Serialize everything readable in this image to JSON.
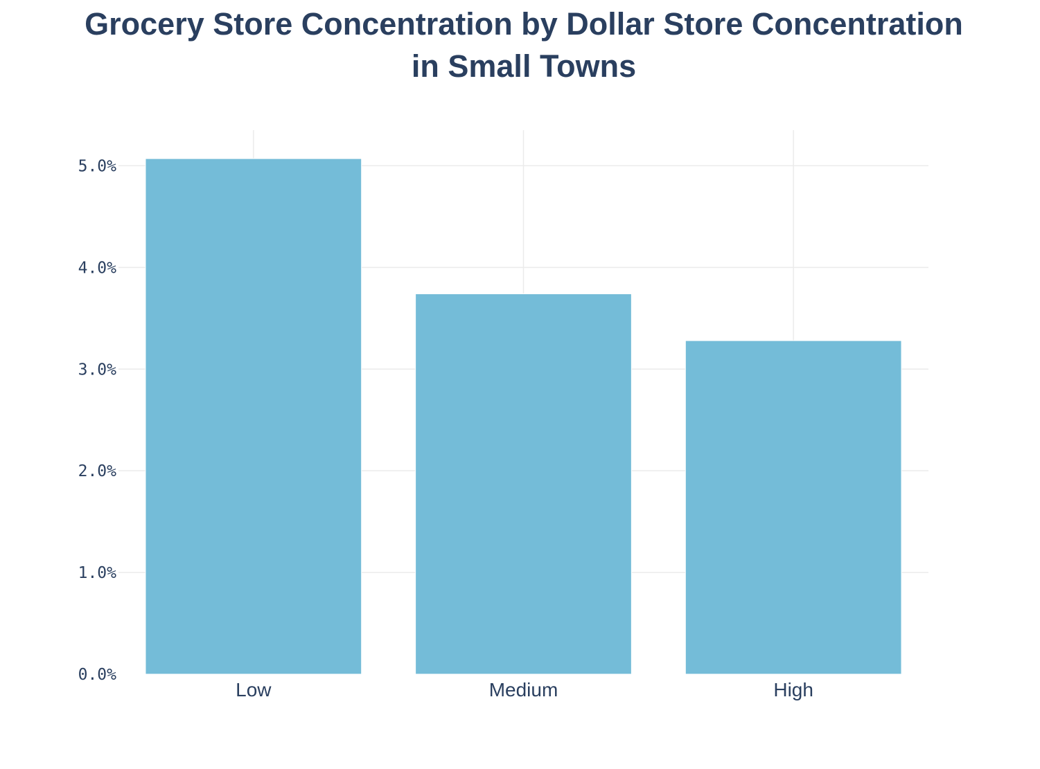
{
  "chart_data": {
    "type": "bar",
    "title_lines": [
      "Grocery Store Concentration by Dollar Store Concentration",
      "in Small Towns"
    ],
    "xlabel": "",
    "ylabel": "",
    "categories": [
      "Low",
      "Medium",
      "High"
    ],
    "values": [
      0.0507,
      0.0374,
      0.0328
    ],
    "value_format": "percent",
    "ylim": [
      0,
      0.0535
    ],
    "y_ticks": [
      0,
      0.01,
      0.02,
      0.03,
      0.04,
      0.05
    ],
    "y_tick_labels": [
      "0.0%",
      "1.0%",
      "2.0%",
      "3.0%",
      "4.0%",
      "5.0%"
    ],
    "grid": true,
    "legend": "none",
    "colors": {
      "bar": "#74bcd8",
      "bar_edge": "#ffffff",
      "grid": "#ebebeb",
      "text": "#2a3f5f",
      "background": "#ffffff"
    }
  }
}
